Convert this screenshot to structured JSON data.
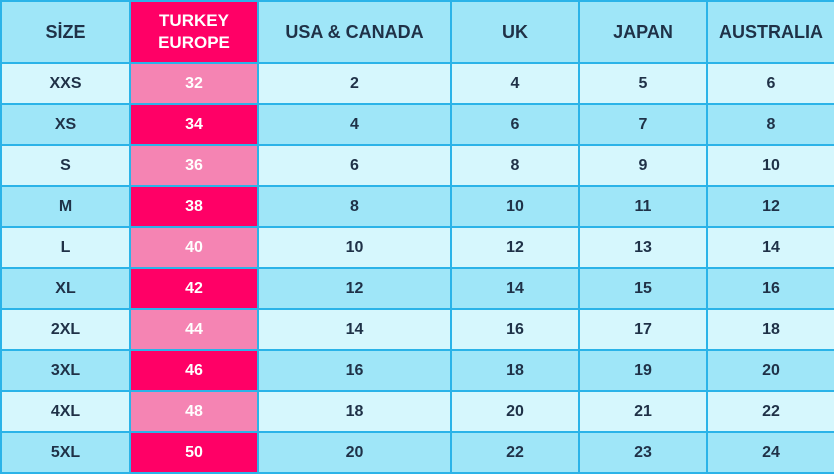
{
  "table": {
    "headers": {
      "size": "SİZE",
      "turkey_line1": "TURKEY",
      "turkey_line2": "EUROPE",
      "usa_canada": "USA & CANADA",
      "uk": "UK",
      "japan": "JAPAN",
      "australia": "AUSTRALIA"
    },
    "rows": [
      {
        "size": "XXS",
        "turkey_europe": "32",
        "usa_canada": "2",
        "uk": "4",
        "japan": "5",
        "australia": "6"
      },
      {
        "size": "XS",
        "turkey_europe": "34",
        "usa_canada": "4",
        "uk": "6",
        "japan": "7",
        "australia": "8"
      },
      {
        "size": "S",
        "turkey_europe": "36",
        "usa_canada": "6",
        "uk": "8",
        "japan": "9",
        "australia": "10"
      },
      {
        "size": "M",
        "turkey_europe": "38",
        "usa_canada": "8",
        "uk": "10",
        "japan": "11",
        "australia": "12"
      },
      {
        "size": "L",
        "turkey_europe": "40",
        "usa_canada": "10",
        "uk": "12",
        "japan": "13",
        "australia": "14"
      },
      {
        "size": "XL",
        "turkey_europe": "42",
        "usa_canada": "12",
        "uk": "14",
        "japan": "15",
        "australia": "16"
      },
      {
        "size": "2XL",
        "turkey_europe": "44",
        "usa_canada": "14",
        "uk": "16",
        "japan": "17",
        "australia": "18"
      },
      {
        "size": "3XL",
        "turkey_europe": "46",
        "usa_canada": "16",
        "uk": "18",
        "japan": "19",
        "australia": "20"
      },
      {
        "size": "4XL",
        "turkey_europe": "48",
        "usa_canada": "18",
        "uk": "20",
        "japan": "21",
        "australia": "22"
      },
      {
        "size": "5XL",
        "turkey_europe": "50",
        "usa_canada": "20",
        "uk": "22",
        "japan": "23",
        "australia": "24"
      }
    ]
  },
  "colors": {
    "header_blue": "#9fe6f8",
    "row_light": "#d6f7fd",
    "turkey_header": "#ff0066",
    "turkey_dark": "#ff0066",
    "turkey_light": "#f584b3",
    "border": "#2bb3e8",
    "text": "#1f3147"
  }
}
